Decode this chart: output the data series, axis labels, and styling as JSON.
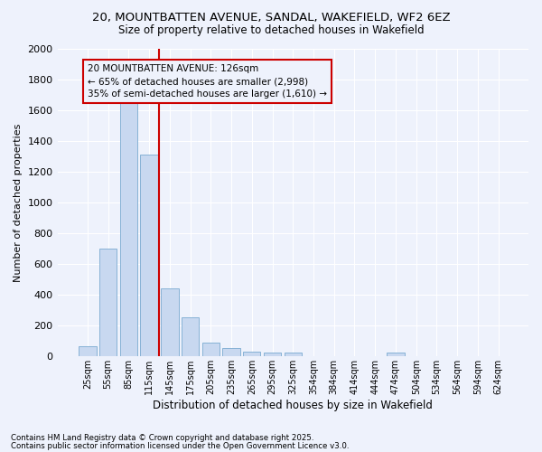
{
  "title_line1": "20, MOUNTBATTEN AVENUE, SANDAL, WAKEFIELD, WF2 6EZ",
  "title_line2": "Size of property relative to detached houses in Wakefield",
  "xlabel": "Distribution of detached houses by size in Wakefield",
  "ylabel": "Number of detached properties",
  "categories": [
    "25sqm",
    "55sqm",
    "85sqm",
    "115sqm",
    "145sqm",
    "175sqm",
    "205sqm",
    "235sqm",
    "265sqm",
    "295sqm",
    "325sqm",
    "354sqm",
    "384sqm",
    "414sqm",
    "444sqm",
    "474sqm",
    "504sqm",
    "534sqm",
    "564sqm",
    "594sqm",
    "624sqm"
  ],
  "values": [
    65,
    700,
    1660,
    1310,
    440,
    255,
    90,
    55,
    30,
    25,
    25,
    0,
    0,
    0,
    0,
    25,
    0,
    0,
    0,
    0,
    0
  ],
  "bar_color": "#c8d8f0",
  "bar_edge_color": "#7aaad0",
  "vline_color": "#cc0000",
  "vline_pos": 3.5,
  "ylim": [
    0,
    2000
  ],
  "yticks": [
    0,
    200,
    400,
    600,
    800,
    1000,
    1200,
    1400,
    1600,
    1800,
    2000
  ],
  "annotation_text": "20 MOUNTBATTEN AVENUE: 126sqm\n← 65% of detached houses are smaller (2,998)\n35% of semi-detached houses are larger (1,610) →",
  "annotation_box_edgecolor": "#cc0000",
  "footnote1": "Contains HM Land Registry data © Crown copyright and database right 2025.",
  "footnote2": "Contains public sector information licensed under the Open Government Licence v3.0.",
  "background_color": "#eef2fc"
}
